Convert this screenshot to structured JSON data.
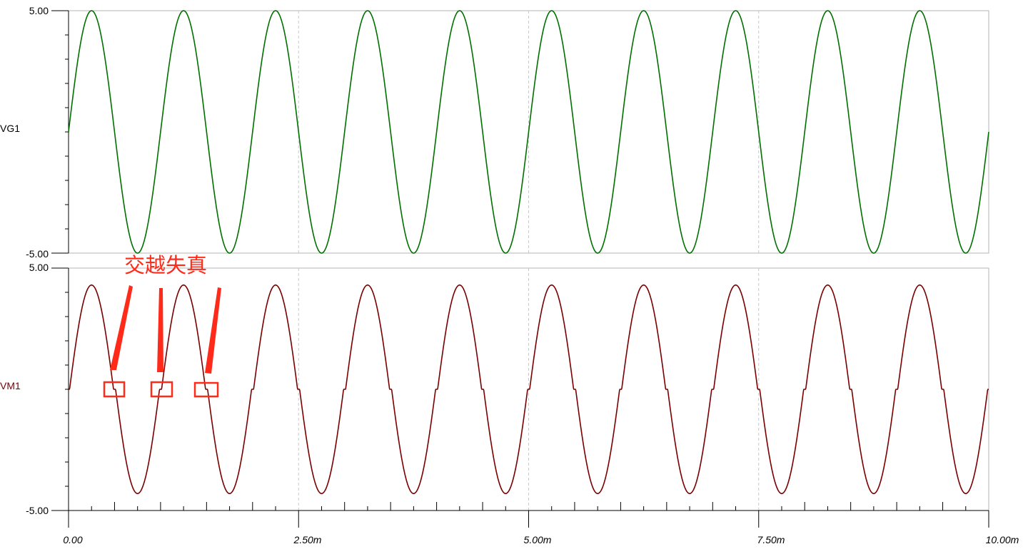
{
  "chart_data": [
    {
      "type": "line",
      "trace_label": "VG1",
      "ylim": [
        -5.0,
        5.0
      ],
      "y_ticks": [
        "5.00",
        "-5.00"
      ],
      "xlim": [
        0,
        10
      ],
      "x_unit": "ms",
      "series": [
        {
          "name": "VG1",
          "color": "#007000",
          "amplitude": 5.0,
          "frequency_khz": 1.0,
          "crossover_gap": 0.0
        }
      ]
    },
    {
      "type": "line",
      "trace_label": "VM1",
      "ylim": [
        -5.0,
        5.0
      ],
      "y_ticks": [
        "5.00",
        "-5.00"
      ],
      "xlim": [
        0,
        10
      ],
      "x_unit": "ms",
      "series": [
        {
          "name": "VM1",
          "color": "#7a0000",
          "amplitude": 4.3,
          "frequency_khz": 1.0,
          "crossover_gap": 0.35
        }
      ]
    }
  ],
  "x_axis": {
    "tick_labels": [
      "0.00",
      "2.50m",
      "5.00m",
      "7.50m",
      "10.00m"
    ],
    "tick_values_ms": [
      0,
      2.5,
      5.0,
      7.5,
      10.0
    ]
  },
  "annotation": {
    "text": "交越失真",
    "color": "#ff2a1a",
    "markers_at_ms": [
      0.5,
      1.0,
      1.5
    ]
  }
}
